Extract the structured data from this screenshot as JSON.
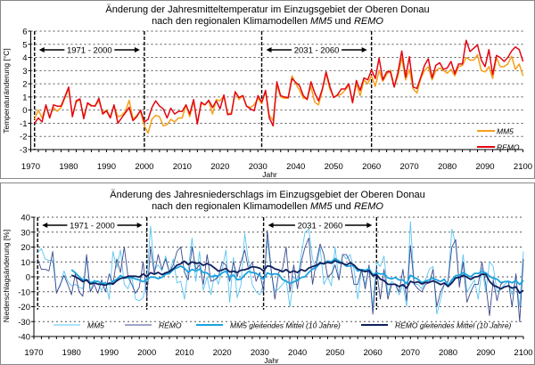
{
  "chart_data": [
    {
      "type": "line",
      "title_line1": "Änderung der Jahresmitteltemperatur im Einzugsgebiet der Oberen Donau",
      "title_line2_prefix": "nach den regionalen Klimamodellen ",
      "title_model1": "MM5",
      "title_and": " und ",
      "title_model2": "REMO",
      "xlabel": "Jahr",
      "ylabel": "Temperaturänderung [°C]",
      "xlim": [
        1970,
        2100
      ],
      "ylim": [
        -3,
        6
      ],
      "xticks": [
        1970,
        1980,
        1990,
        2000,
        2010,
        2020,
        2030,
        2040,
        2050,
        2060,
        2070,
        2080,
        2090,
        2100
      ],
      "yticks": [
        -3,
        -2,
        -1,
        0,
        1,
        2,
        3,
        4,
        5,
        6
      ],
      "grid": true,
      "legend_position": "right",
      "period_markers": [
        1971,
        2000,
        2031,
        2060
      ],
      "periods": [
        {
          "label": "1971 - 2000"
        },
        {
          "label": "2031 - 2060"
        }
      ],
      "x_start": 1971,
      "series": [
        {
          "name": "MM5",
          "color": "#f5a01a",
          "values": [
            -0.7,
            0.0,
            -0.6,
            0.3,
            -0.5,
            0.2,
            -0.1,
            0.2,
            0.9,
            1.6,
            -0.4,
            0.6,
            0.8,
            -0.5,
            0.5,
            0.3,
            0.35,
            0.7,
            -0.2,
            0.0,
            -0.5,
            0.3,
            -0.5,
            -0.4,
            -0.1,
            0.75,
            -0.7,
            -0.4,
            -0.1,
            -1.2,
            -1.75,
            -0.7,
            -0.4,
            -0.5,
            -1.2,
            -1.1,
            -0.7,
            -0.9,
            -0.6,
            -0.6,
            0.4,
            -0.5,
            0.7,
            -1.0,
            0.5,
            0.4,
            0.7,
            -0.3,
            0.8,
            0.7,
            1.1,
            -0.3,
            -0.2,
            1.4,
            0.8,
            1.1,
            0.3,
            0.2,
            0.4,
            0.9,
            0.5,
            1.4,
            -0.4,
            -0.8,
            1.9,
            1.0,
            0.9,
            0.9,
            2.6,
            2.0,
            1.5,
            0.9,
            0.9,
            1.8,
            0.6,
            0.4,
            1.5,
            2.8,
            1.6,
            1.0,
            1.1,
            1.2,
            1.5,
            1.9,
            0.6,
            2.0,
            1.1,
            2.3,
            2.0,
            2.6,
            1.8,
            3.0,
            2.2,
            2.7,
            3.05,
            1.8,
            2.6,
            4.0,
            2.3,
            3.1,
            1.6,
            1.3,
            2.4,
            3.0,
            3.3,
            2.3,
            3.0,
            3.2,
            3.0,
            2.8,
            3.1,
            2.6,
            3.3,
            3.4,
            4.0,
            3.8,
            3.8,
            4.2,
            3.0,
            2.9,
            3.3,
            2.4,
            4.0,
            3.3,
            3.3,
            3.5,
            4.1,
            3.1,
            3.5,
            2.6
          ]
        },
        {
          "name": "REMO",
          "color": "#e30613",
          "values": [
            -1.0,
            -0.6,
            -0.9,
            0.4,
            -0.6,
            0.4,
            0.3,
            0.3,
            1.0,
            1.75,
            -0.5,
            0.7,
            0.85,
            -0.65,
            0.55,
            0.35,
            0.3,
            0.9,
            -0.3,
            -0.05,
            -0.6,
            0.4,
            -1.0,
            -0.6,
            -0.2,
            0.2,
            -0.8,
            -0.5,
            0.0,
            -0.9,
            -0.7,
            0.2,
            0.7,
            0.3,
            0.1,
            -0.6,
            0.15,
            -0.3,
            -0.1,
            -0.1,
            0.4,
            -0.3,
            0.8,
            -1.05,
            0.6,
            0.4,
            0.75,
            0.2,
            0.7,
            0.1,
            1.15,
            -0.35,
            -0.3,
            1.4,
            0.95,
            1.1,
            0.3,
            0.1,
            -0.05,
            1.1,
            0.6,
            1.5,
            -0.6,
            -1.2,
            2.15,
            1.1,
            1.0,
            0.95,
            2.4,
            2.1,
            1.85,
            1.1,
            0.8,
            2.15,
            1.3,
            0.7,
            1.6,
            2.9,
            1.8,
            0.95,
            1.15,
            1.6,
            1.6,
            2.0,
            0.55,
            2.25,
            1.5,
            2.45,
            2.3,
            3.05,
            2.4,
            3.95,
            2.3,
            2.9,
            2.9,
            1.75,
            2.9,
            4.5,
            2.5,
            4.05,
            1.75,
            1.65,
            2.5,
            3.4,
            3.9,
            2.45,
            3.4,
            3.6,
            3.1,
            3.2,
            3.7,
            2.75,
            3.5,
            3.5,
            5.3,
            4.45,
            4.7,
            4.95,
            3.8,
            3.3,
            4.6,
            2.7,
            4.15,
            4.0,
            3.7,
            4.0,
            4.5,
            4.8,
            4.6,
            3.7
          ]
        }
      ]
    },
    {
      "type": "line",
      "title_line1": "Änderung des Jahresniederschlags im Einzugsgebiet der Oberen Donau",
      "title_line2_prefix": "nach den regionalen Klimamodellen ",
      "title_model1": "MM5",
      "title_and": " und ",
      "title_model2": "REMO",
      "xlabel": "Jahr",
      "ylabel": "Niederschlagsänderung [%]",
      "xlim": [
        1970,
        2100
      ],
      "ylim": [
        -40,
        40
      ],
      "xticks": [
        1970,
        1980,
        1990,
        2000,
        2010,
        2020,
        2030,
        2040,
        2050,
        2060,
        2070,
        2080,
        2090,
        2100
      ],
      "yticks": [
        -40,
        -30,
        -20,
        -10,
        0,
        10,
        20,
        30,
        40
      ],
      "grid": true,
      "legend_position": "bottom",
      "period_markers": [
        1971,
        2000,
        2031,
        2061
      ],
      "periods": [
        {
          "label": "1971 - 2000"
        },
        {
          "label": "2031 - 2060"
        }
      ],
      "x_start": 1971,
      "series": [
        {
          "name": "MM5",
          "color": "#5bc5f2",
          "values": [
            16,
            19,
            12,
            11,
            11,
            -10,
            -6,
            4,
            -3,
            -6,
            -5,
            -7,
            -8,
            12,
            -10,
            -2,
            -5,
            -9,
            -3,
            -15,
            17,
            6,
            18,
            -5,
            -8,
            0,
            -15,
            -16,
            -14,
            -1,
            34,
            5,
            8,
            4,
            14,
            3,
            12,
            -4,
            -3,
            -15,
            5,
            26,
            -3,
            17,
            -9,
            0,
            -12,
            2,
            -5,
            5,
            18,
            -17,
            13,
            -14,
            -5,
            29,
            10,
            -5,
            -10,
            -12,
            -5,
            25,
            3,
            -10,
            -8,
            -5,
            -2,
            -20,
            0,
            -2,
            15,
            30,
            32,
            12,
            5,
            20,
            -5,
            0,
            -6,
            20,
            -2,
            15,
            12,
            15,
            5,
            -15,
            5,
            -5,
            5,
            -20,
            10,
            7,
            14,
            -12,
            -3,
            -5,
            -12,
            -5,
            -20,
            37,
            -5,
            -5,
            -8,
            -2,
            5,
            7,
            -25,
            -15,
            -5,
            -3,
            32,
            22,
            -5,
            15,
            -10,
            -6,
            -2,
            -15,
            6,
            -10,
            10,
            7,
            -10,
            -8,
            -5,
            -3,
            -12,
            0,
            -20,
            17
          ]
        },
        {
          "name": "REMO",
          "color": "#3c4a8c",
          "values": [
            12,
            5,
            5,
            4,
            17,
            -11,
            -5,
            1,
            -5,
            -12,
            2,
            -10,
            -13,
            15,
            -10,
            -5,
            -11,
            -2,
            -10,
            2,
            -5,
            12,
            3,
            20,
            0,
            -5,
            -11,
            -7,
            10,
            -14,
            20,
            2,
            15,
            5,
            12,
            3,
            8,
            17,
            20,
            3,
            -2,
            20,
            5,
            8,
            -5,
            15,
            -3,
            -2,
            0,
            10,
            8,
            -3,
            10,
            0,
            10,
            18,
            5,
            10,
            -3,
            3,
            -10,
            31,
            5,
            -15,
            3,
            5,
            20,
            -10,
            8,
            -8,
            10,
            20,
            26,
            -5,
            10,
            22,
            15,
            0,
            2,
            8,
            -2,
            15,
            15,
            10,
            -5,
            -5,
            5,
            -8,
            8,
            -25,
            5,
            -15,
            5,
            -15,
            -5,
            -5,
            -10,
            5,
            -16,
            21,
            -5,
            -8,
            -10,
            -5,
            -4,
            5,
            -20,
            -10,
            -5,
            -3,
            20,
            25,
            -7,
            10,
            -17,
            -10,
            -5,
            -5,
            10,
            -5,
            -26,
            -2,
            -16,
            -5,
            -3,
            -3,
            -20,
            2,
            -30,
            12
          ]
        },
        {
          "name": "MM5 gleitendes Mittel (10 Jahre)",
          "color": "#1aa3e0",
          "moving_average_of": "MM5",
          "window": 10
        },
        {
          "name": "REMO gleitendes Mittel (10 Jahre)",
          "color": "#0f1f5c",
          "moving_average_of": "REMO",
          "window": 10
        }
      ]
    }
  ]
}
